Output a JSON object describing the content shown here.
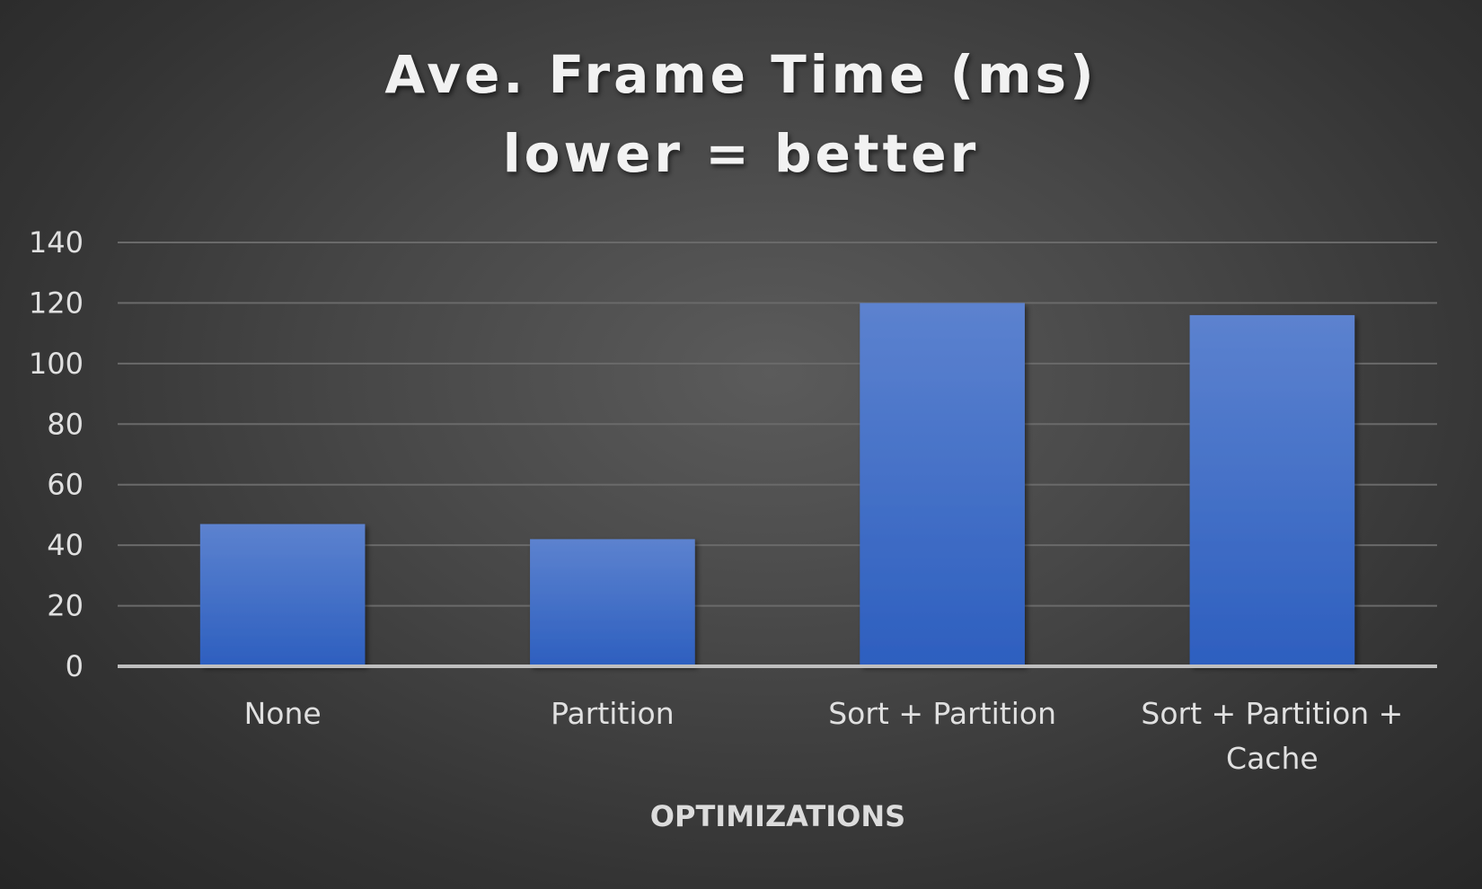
{
  "chart_data": {
    "type": "bar",
    "title_lines": [
      "Ave. Frame Time (ms)",
      "lower = better"
    ],
    "categories": [
      [
        "None"
      ],
      [
        "Partition"
      ],
      [
        "Sort + Partition"
      ],
      [
        "Sort + Partition +",
        "Cache"
      ]
    ],
    "values": [
      47,
      42,
      120,
      116
    ],
    "xlabel": "OPTIMIZATIONS",
    "ylabel": "",
    "ylim": [
      0,
      140
    ],
    "yticks": [
      0,
      20,
      40,
      60,
      80,
      100,
      120,
      140
    ],
    "grid": true,
    "bar_color": "#4472c4",
    "background_color": "#404040"
  }
}
